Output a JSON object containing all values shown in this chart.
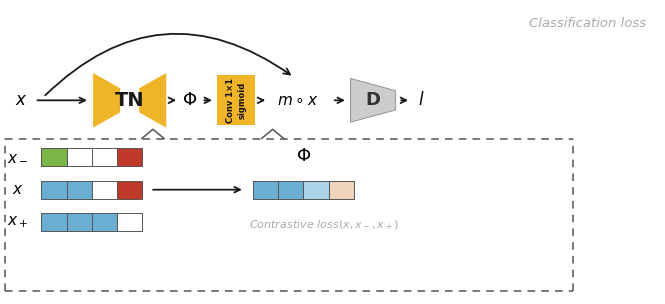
{
  "fig_width": 6.65,
  "fig_height": 3.04,
  "dpi": 100,
  "bg_color": "#ffffff",
  "gold_color": "#F0B429",
  "gray_light": "#cccccc",
  "gray_dark": "#888888",
  "blue_color": "#6aafd2",
  "green_color": "#7ab648",
  "red_color": "#c0392b",
  "light_blue": "#aad4e8",
  "peach_color": "#f0d5bc",
  "arrow_color": "#1a1a1a",
  "text_gray": "#aaaaaa",
  "classification_text": "Classification loss",
  "contrastive_text": "Contrastive loss(x,x_,x+)",
  "phi_symbol": "Φ",
  "conv_label": "Conv 1×1\nsigmoid",
  "TN_label": "TN",
  "D_label": "D",
  "l_label": "l"
}
